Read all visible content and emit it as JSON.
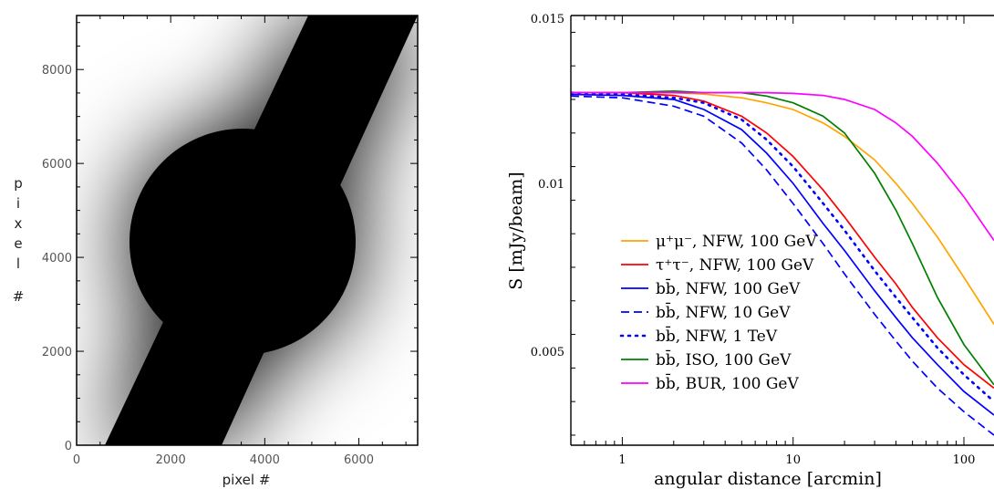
{
  "left_panel": {
    "x_ticks": [
      "0",
      "2000",
      "4000",
      "6000"
    ],
    "y_ticks": [
      "0",
      "2000",
      "4000",
      "6000",
      "8000"
    ],
    "xlabel": "pixel #",
    "ylabel": "pixel #"
  },
  "chart_data": {
    "type": "line",
    "xlabel": "angular distance [arcmin]",
    "ylabel": "S [mJy/beam]",
    "xscale": "log",
    "xlim": [
      0.5,
      150
    ],
    "ylim": [
      0.0022,
      0.015
    ],
    "x_tick_labels": [
      "1",
      "10",
      "100"
    ],
    "y_tick_labels": [
      "0.005",
      "0.01",
      "0.015"
    ],
    "x_ticks": [
      1,
      10,
      100
    ],
    "y_ticks": [
      0.005,
      0.01,
      0.015
    ],
    "grid": false,
    "legend": {
      "placement": "center-left"
    },
    "series": [
      {
        "name": "μ⁺μ⁻, NFW, 100 GeV",
        "color": "#ffa500",
        "dash": "solid",
        "x": [
          0.5,
          1,
          2,
          3,
          5,
          7,
          10,
          15,
          20,
          30,
          40,
          50,
          70,
          100,
          150
        ],
        "y": [
          0.0127,
          0.0127,
          0.0127,
          0.01266,
          0.01255,
          0.0124,
          0.0122,
          0.0118,
          0.0114,
          0.0107,
          0.01,
          0.0094,
          0.0084,
          0.0072,
          0.0058
        ]
      },
      {
        "name": "τ⁺τ⁻, NFW, 100 GeV",
        "color": "#ff0000",
        "dash": "solid",
        "x": [
          0.5,
          1,
          2,
          3,
          5,
          7,
          10,
          15,
          20,
          30,
          40,
          50,
          70,
          100,
          150
        ],
        "y": [
          0.0127,
          0.0127,
          0.01262,
          0.01245,
          0.012,
          0.0115,
          0.0108,
          0.0098,
          0.009,
          0.0078,
          0.007,
          0.0063,
          0.0054,
          0.0046,
          0.0039
        ]
      },
      {
        "name": "bb̄, NFW, 100 GeV",
        "color": "#0000ff",
        "dash": "solid",
        "x": [
          0.5,
          1,
          2,
          3,
          5,
          7,
          10,
          15,
          20,
          30,
          40,
          50,
          70,
          100,
          150
        ],
        "y": [
          0.01265,
          0.01262,
          0.0125,
          0.0122,
          0.0116,
          0.0109,
          0.01,
          0.0088,
          0.008,
          0.0068,
          0.006,
          0.0054,
          0.0046,
          0.0038,
          0.0031
        ]
      },
      {
        "name": "bb̄, NFW, 10 GeV",
        "color": "#0000ff",
        "dash": "dashed",
        "x": [
          0.5,
          1,
          2,
          3,
          5,
          7,
          10,
          15,
          20,
          30,
          40,
          50,
          70,
          100,
          150
        ],
        "y": [
          0.0126,
          0.01255,
          0.0123,
          0.012,
          0.0112,
          0.0104,
          0.0094,
          0.0082,
          0.0073,
          0.0061,
          0.0053,
          0.0047,
          0.0039,
          0.0032,
          0.0025
        ]
      },
      {
        "name": "bb̄, NFW, 1 TeV",
        "color": "#0000ff",
        "dash": "dotted",
        "x": [
          0.5,
          1,
          2,
          3,
          5,
          7,
          10,
          15,
          20,
          30,
          40,
          50,
          70,
          100,
          150
        ],
        "y": [
          0.0127,
          0.01265,
          0.01255,
          0.0124,
          0.0119,
          0.0113,
          0.0105,
          0.0094,
          0.0086,
          0.0074,
          0.0066,
          0.006,
          0.0051,
          0.0043,
          0.0035
        ]
      },
      {
        "name": "bb̄, ISO, 100 GeV",
        "color": "#008000",
        "dash": "solid",
        "x": [
          0.5,
          1,
          2,
          3,
          5,
          7,
          10,
          15,
          20,
          30,
          40,
          50,
          70,
          100,
          150
        ],
        "y": [
          0.0127,
          0.0127,
          0.01275,
          0.0127,
          0.0127,
          0.0126,
          0.0124,
          0.012,
          0.0115,
          0.0103,
          0.0092,
          0.0082,
          0.0066,
          0.0052,
          0.004
        ]
      },
      {
        "name": "bb̄, BUR, 100 GeV",
        "color": "#ff00ff",
        "dash": "solid",
        "x": [
          0.5,
          1,
          2,
          3,
          5,
          7,
          10,
          15,
          20,
          30,
          40,
          50,
          70,
          100,
          150
        ],
        "y": [
          0.0127,
          0.0127,
          0.0127,
          0.0127,
          0.0127,
          0.0127,
          0.01268,
          0.01262,
          0.0125,
          0.0122,
          0.0118,
          0.0114,
          0.0106,
          0.0096,
          0.0083
        ]
      }
    ]
  }
}
